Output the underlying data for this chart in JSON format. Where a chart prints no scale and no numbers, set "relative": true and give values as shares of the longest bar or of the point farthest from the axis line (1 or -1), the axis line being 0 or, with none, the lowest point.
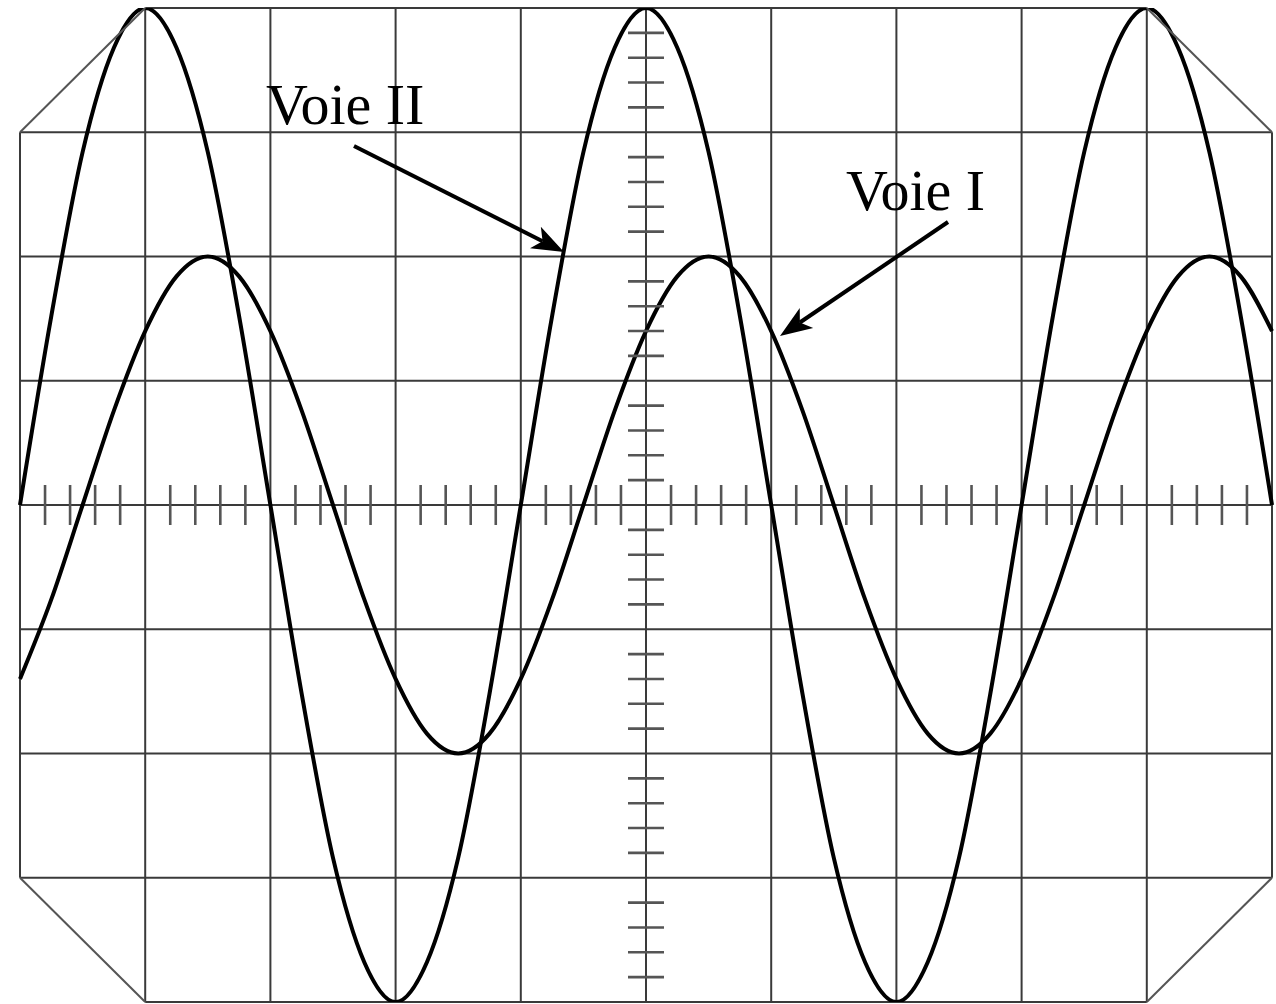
{
  "chart_data": {
    "type": "line",
    "relative": true,
    "grid": true,
    "categories": [
      null,
      null,
      null,
      null,
      null,
      null,
      null,
      null,
      null,
      null,
      null,
      null,
      null,
      null,
      null,
      null,
      null,
      null,
      null,
      null,
      null,
      null,
      null,
      null,
      null,
      null,
      null,
      null,
      null,
      null,
      null,
      null,
      null,
      null,
      null,
      null,
      null,
      null,
      null,
      null,
      null
    ],
    "series": [
      {
        "name": "Voie II",
        "color": "#000000",
        "values": [
          0,
          0.38,
          0.71,
          0.92,
          1,
          0.92,
          0.71,
          0.38,
          0,
          -0.38,
          -0.71,
          -0.92,
          -1,
          -0.92,
          -0.71,
          -0.38,
          0,
          0.38,
          0.71,
          0.92,
          1,
          0.92,
          0.71,
          0.38,
          0,
          -0.38,
          -0.71,
          -0.92,
          -1,
          -0.92,
          -0.71,
          -0.38,
          0,
          0.38,
          0.71,
          0.92,
          1,
          0.92,
          0.71,
          0.38,
          0
        ]
      },
      {
        "name": "Voie I",
        "color": "#000000",
        "values": [
          -0.35,
          -0.19,
          0,
          0.19,
          0.35,
          0.46,
          0.5,
          0.46,
          0.35,
          0.19,
          0,
          -0.19,
          -0.35,
          -0.46,
          -0.5,
          -0.46,
          -0.35,
          -0.19,
          0,
          0.19,
          0.35,
          0.46,
          0.5,
          0.46,
          0.35,
          0.19,
          0,
          -0.19,
          -0.35,
          -0.46,
          -0.5,
          -0.46,
          -0.35,
          -0.19,
          0,
          0.19,
          0.35,
          0.46,
          0.5,
          0.46,
          0.35
        ]
      }
    ]
  }
}
